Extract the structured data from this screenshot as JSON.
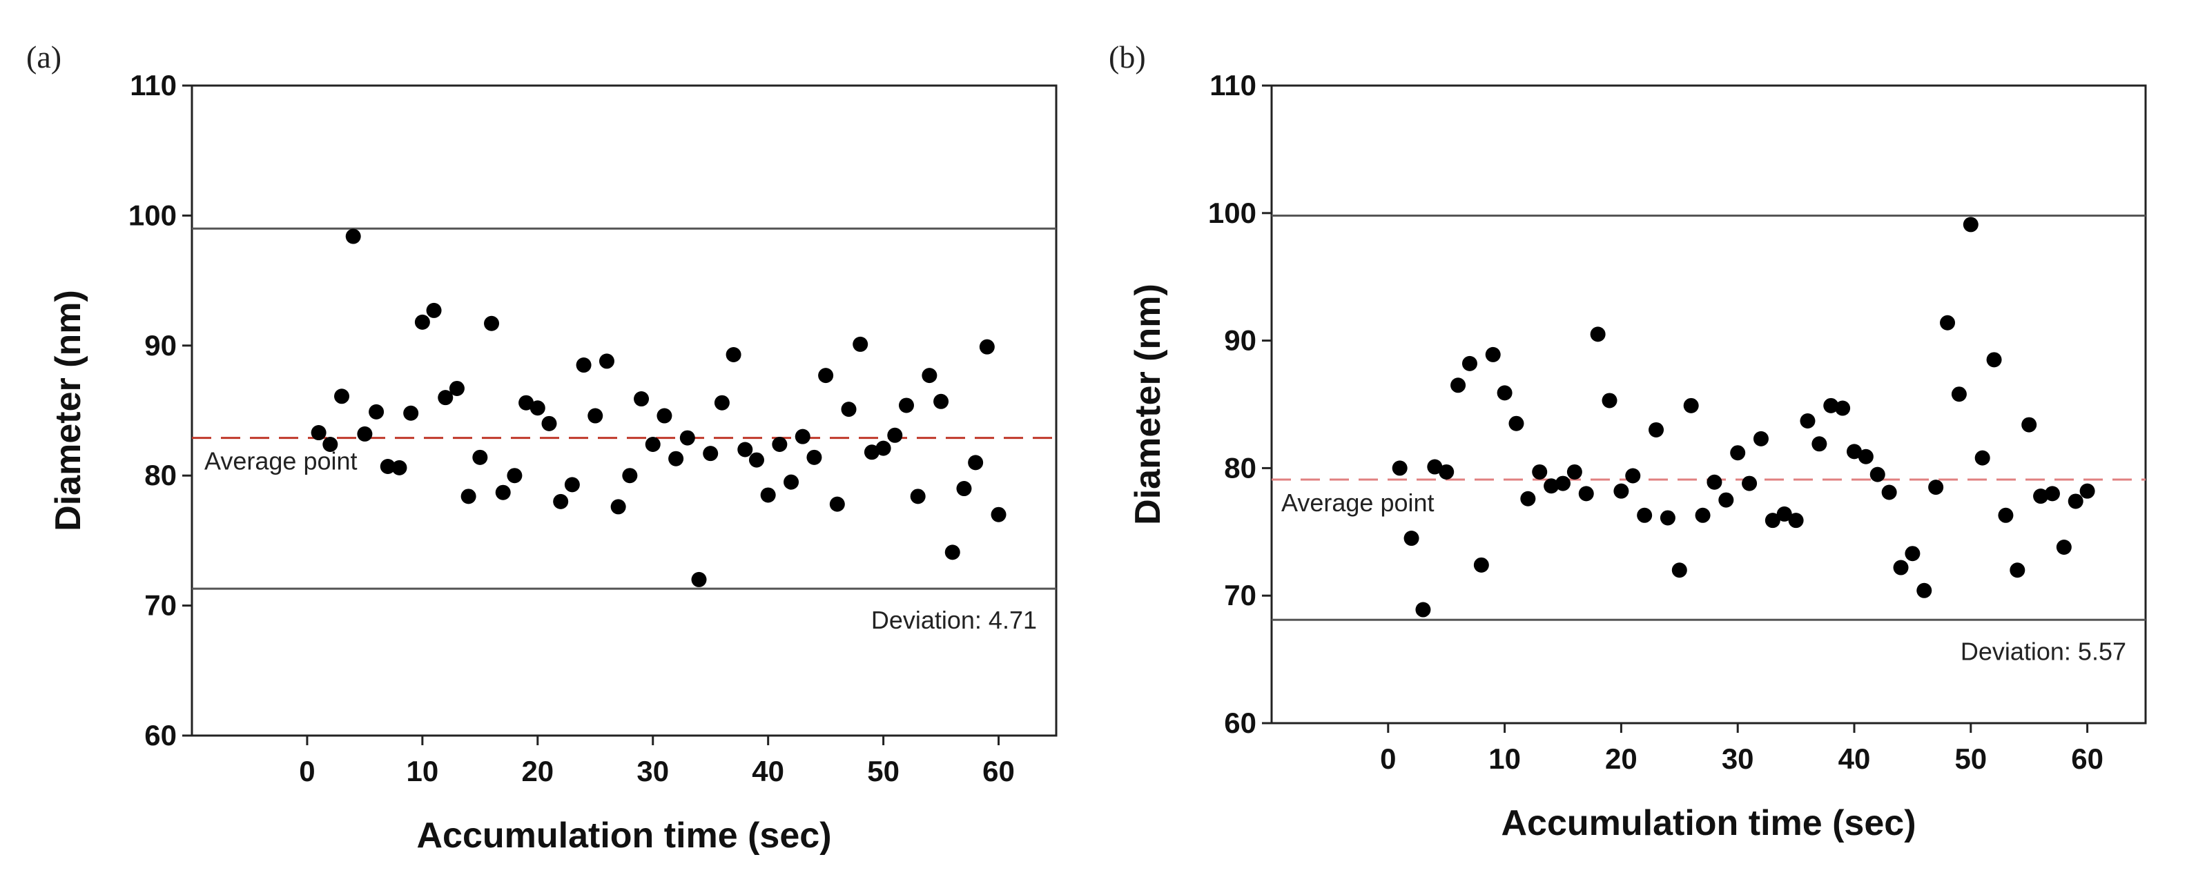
{
  "chart_data": [
    {
      "type": "scatter",
      "panel_label": "(a)",
      "title": "",
      "xlabel": "Accumulation time (sec)",
      "ylabel": "Diameter (nm)",
      "xlim": [
        -10,
        65
      ],
      "ylim": [
        60,
        110
      ],
      "xticks": [
        "0",
        "10",
        "20",
        "30",
        "40",
        "50",
        "60"
      ],
      "yticks": [
        "60",
        "70",
        "80",
        "90",
        "100",
        "110"
      ],
      "grid": false,
      "x": [
        1,
        2,
        3,
        4,
        5,
        6,
        7,
        8,
        9,
        10,
        11,
        12,
        13,
        14,
        15,
        16,
        17,
        18,
        19,
        20,
        21,
        22,
        23,
        24,
        25,
        26,
        27,
        28,
        29,
        30,
        31,
        32,
        33,
        34,
        35,
        36,
        37,
        38,
        39,
        40,
        41,
        42,
        43,
        44,
        45,
        46,
        47,
        48,
        49,
        50,
        51,
        52,
        53,
        54,
        55,
        56,
        57,
        58,
        59,
        60
      ],
      "y": [
        83.3,
        82.4,
        86.1,
        98.4,
        83.2,
        84.9,
        80.7,
        80.6,
        84.8,
        91.8,
        92.7,
        86.0,
        86.7,
        78.4,
        81.4,
        91.7,
        78.7,
        80.0,
        85.6,
        85.2,
        84.0,
        78.0,
        79.3,
        88.5,
        84.6,
        88.8,
        77.6,
        80.0,
        85.9,
        82.4,
        84.6,
        81.3,
        82.9,
        72.0,
        81.7,
        85.6,
        89.3,
        82.0,
        81.2,
        78.5,
        82.4,
        79.5,
        83.0,
        81.4,
        87.7,
        77.8,
        85.1,
        90.1,
        81.8,
        82.1,
        83.1,
        85.4,
        78.4,
        87.7,
        85.7,
        74.1,
        79.0,
        81.0,
        89.9,
        77.0
      ],
      "average": 82.9,
      "average_label": "Average point",
      "upper_limit": 99.0,
      "lower_limit": 71.3,
      "deviation_label": "Deviation: 4.71",
      "colors": {
        "points": "#000000",
        "average_line": "#c0392b",
        "limit_lines": "#555555"
      }
    },
    {
      "type": "scatter",
      "panel_label": "(b)",
      "title": "",
      "xlabel": "Accumulation time (sec)",
      "ylabel": "Diameter (nm)",
      "xlim": [
        -10,
        65
      ],
      "ylim": [
        60,
        110
      ],
      "xticks": [
        "0",
        "10",
        "20",
        "30",
        "40",
        "50",
        "60"
      ],
      "yticks": [
        "60",
        "70",
        "80",
        "90",
        "100",
        "110"
      ],
      "grid": false,
      "x": [
        1,
        2,
        3,
        4,
        5,
        6,
        7,
        8,
        9,
        10,
        11,
        12,
        13,
        14,
        15,
        16,
        17,
        18,
        19,
        20,
        21,
        22,
        23,
        24,
        25,
        26,
        27,
        28,
        29,
        30,
        31,
        32,
        33,
        34,
        35,
        36,
        37,
        38,
        39,
        40,
        41,
        42,
        43,
        44,
        45,
        46,
        47,
        48,
        49,
        50,
        51,
        52,
        53,
        54,
        55,
        56,
        57,
        58,
        59,
        60
      ],
      "y": [
        80.0,
        74.5,
        68.9,
        80.1,
        79.7,
        86.5,
        88.2,
        72.4,
        88.9,
        85.9,
        83.5,
        77.6,
        79.7,
        78.6,
        78.8,
        79.7,
        78.0,
        90.5,
        85.3,
        78.2,
        79.4,
        76.3,
        83.0,
        76.1,
        72.0,
        84.9,
        76.3,
        78.9,
        77.5,
        81.2,
        78.8,
        82.3,
        75.9,
        76.4,
        75.9,
        83.7,
        81.9,
        84.9,
        84.7,
        81.3,
        80.9,
        79.5,
        78.1,
        72.2,
        73.3,
        70.4,
        78.5,
        91.4,
        85.8,
        99.1,
        80.8,
        88.5,
        76.3,
        72.0,
        83.4,
        77.8,
        78.0,
        73.8,
        77.4,
        78.2
      ],
      "average": 79.1,
      "average_label": "Average point",
      "upper_limit": 99.8,
      "lower_limit": 68.1,
      "deviation_label": "Deviation: 5.57",
      "colors": {
        "points": "#000000",
        "average_line": "#e08080",
        "limit_lines": "#555555"
      }
    }
  ]
}
